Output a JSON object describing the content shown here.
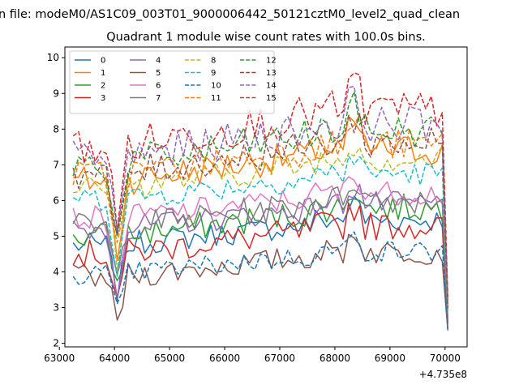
{
  "chart_data": {
    "type": "line",
    "title": "Quadrant 1 module wise count rates with 100.0s bins.",
    "suptitle": "n file: modeM0/AS1C09_003T01_9000006442_50121cztM0_level2_quad_clean",
    "x_offset_label": "+4.735e8",
    "xlim": [
      63100,
      70400
    ],
    "ylim": [
      1.9,
      10.3
    ],
    "x_ticks": [
      "63000",
      "64000",
      "65000",
      "66000",
      "67000",
      "68000",
      "69000",
      "70000"
    ],
    "y_ticks": [
      "2",
      "3",
      "4",
      "5",
      "6",
      "7",
      "8",
      "9",
      "10"
    ],
    "x_start": 63250,
    "x_end": 70050,
    "legend_columns": 4,
    "legend_placement": "upper-left",
    "series": [
      {
        "name": "0",
        "color": "#1f77b4",
        "dash": "solid",
        "base": 4.75,
        "amp": 0.35,
        "dip": 1.3,
        "drop": 2.3
      },
      {
        "name": "1",
        "color": "#ff7f0e",
        "dash": "solid",
        "base": 6.55,
        "amp": 0.45,
        "dip": 2.0,
        "drop": 2.7
      },
      {
        "name": "2",
        "color": "#2ca02c",
        "dash": "solid",
        "base": 5.0,
        "amp": 0.4,
        "dip": 1.4,
        "drop": 2.8
      },
      {
        "name": "3",
        "color": "#d62728",
        "dash": "solid",
        "base": 4.5,
        "amp": 0.4,
        "dip": 1.2,
        "drop": 2.6
      },
      {
        "name": "4",
        "color": "#9467bd",
        "dash": "solid",
        "base": 5.2,
        "amp": 0.35,
        "dip": 1.6,
        "drop": 2.7
      },
      {
        "name": "5",
        "color": "#8c564b",
        "dash": "solid",
        "base": 3.85,
        "amp": 0.35,
        "dip": 1.3,
        "drop": 2.5
      },
      {
        "name": "6",
        "color": "#e377c2",
        "dash": "solid",
        "base": 5.5,
        "amp": 0.35,
        "dip": 1.8,
        "drop": 2.8
      },
      {
        "name": "7",
        "color": "#7f7f7f",
        "dash": "solid",
        "base": 5.25,
        "amp": 0.4,
        "dip": 1.5,
        "drop": 2.7
      },
      {
        "name": "8",
        "color": "#bcbd22",
        "dash": "dashed",
        "base": 6.35,
        "amp": 0.4,
        "dip": 2.0,
        "drop": 3.0
      },
      {
        "name": "9",
        "color": "#17becf",
        "dash": "dashed",
        "base": 6.05,
        "amp": 0.35,
        "dip": 1.9,
        "drop": 2.9
      },
      {
        "name": "10",
        "color": "#1f77b4",
        "dash": "dashed",
        "base": 3.95,
        "amp": 0.3,
        "dip": 1.1,
        "drop": 2.5
      },
      {
        "name": "11",
        "color": "#ff7f0e",
        "dash": "dashed",
        "base": 6.7,
        "amp": 0.45,
        "dip": 2.1,
        "drop": 3.0
      },
      {
        "name": "12",
        "color": "#2ca02c",
        "dash": "dashed",
        "base": 7.0,
        "amp": 0.5,
        "dip": 2.2,
        "drop": 3.2
      },
      {
        "name": "13",
        "color": "#d62728",
        "dash": "dashed",
        "base": 7.5,
        "amp": 0.55,
        "dip": 2.3,
        "drop": 3.3
      },
      {
        "name": "14",
        "color": "#9467bd",
        "dash": "dashed",
        "base": 7.2,
        "amp": 0.5,
        "dip": 2.2,
        "drop": 3.2
      },
      {
        "name": "15",
        "color": "#8c564b",
        "dash": "dashed",
        "base": 6.75,
        "amp": 0.45,
        "dip": 2.1,
        "drop": 3.0
      }
    ]
  }
}
